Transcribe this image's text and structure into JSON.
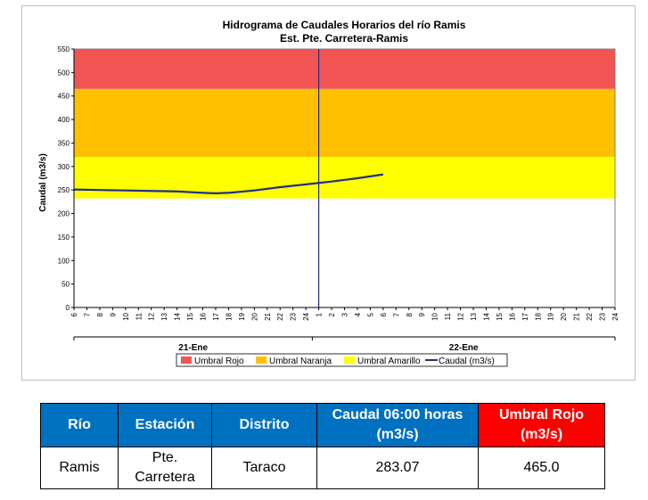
{
  "colors": {
    "umbral_rojo": "#f25353",
    "umbral_naranja": "#ffc000",
    "umbral_amarillo": "#ffff00",
    "caudal_line": "#1f2f8a",
    "header_blue": "#0070c0",
    "header_red": "#ff0000"
  },
  "chart_data": {
    "type": "line",
    "title": "Hidrograma de Caudales Horarios del río Ramis",
    "subtitle": "Est. Pte. Carretera-Ramis",
    "ylabel": "Caudal  (m3/s)",
    "ylim": [
      0,
      550
    ],
    "yticks": [
      "0",
      "50",
      "100",
      "150",
      "200",
      "250",
      "300",
      "350",
      "400",
      "450",
      "500",
      "550"
    ],
    "xticks": [
      "6",
      "7",
      "8",
      "9",
      "10",
      "11",
      "12",
      "13",
      "14",
      "15",
      "16",
      "17",
      "18",
      "19",
      "20",
      "21",
      "22",
      "23",
      "24",
      "1",
      "2",
      "3",
      "4",
      "5",
      "6",
      "7",
      "8",
      "9",
      "10",
      "11",
      "12",
      "13",
      "14",
      "15",
      "16",
      "17",
      "18",
      "19",
      "20",
      "21",
      "22",
      "23",
      "24"
    ],
    "days": [
      "21-Ene",
      "22-Ene"
    ],
    "bands": [
      {
        "name": "Umbral Rojo",
        "from": 465,
        "to": 550
      },
      {
        "name": "Umbral Naranja",
        "from": 320,
        "to": 465
      },
      {
        "name": "Umbral Amarillo",
        "from": 232,
        "to": 320
      }
    ],
    "series": [
      {
        "name": "Caudal (m3/s)",
        "x": [
          0,
          2,
          4,
          6,
          8,
          10,
          11,
          12,
          14,
          16,
          18,
          20,
          22,
          24
        ],
        "values": [
          251,
          250,
          249,
          248,
          247,
          244,
          243,
          244,
          249,
          256,
          262,
          268,
          275,
          283.07
        ]
      }
    ],
    "now_marker_x": 19,
    "legend": [
      "Umbral Rojo",
      "Umbral Naranja",
      "Umbral Amarillo",
      "Caudal (m3/s)"
    ],
    "legend_position": "bottom",
    "grid": false
  },
  "table": {
    "headers": [
      "Río",
      "Estación",
      "Distrito",
      "Caudal 06:00 horas (m3/s)",
      "Umbral Rojo (m3/s)"
    ],
    "row": [
      "Ramis",
      "Pte. Carretera",
      "Taraco",
      "283.07",
      "465.0"
    ]
  }
}
